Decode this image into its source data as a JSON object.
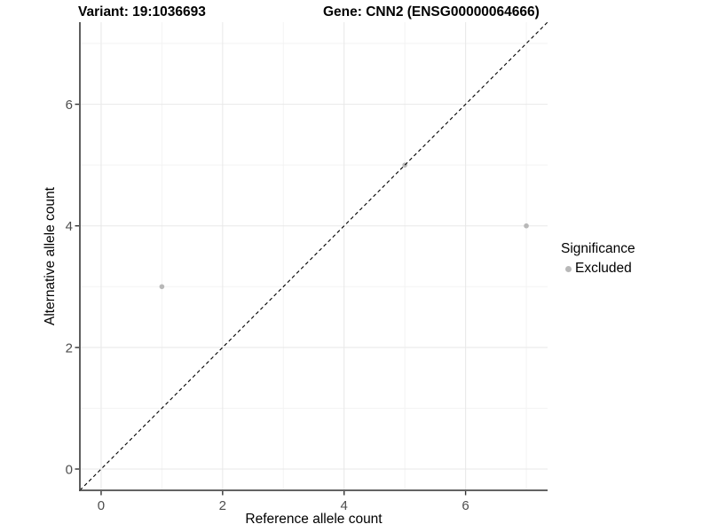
{
  "figure": {
    "title_left": "Variant: 19:1036693",
    "title_right": "Gene: CNN2 (ENSG00000064666)"
  },
  "chart_data": {
    "type": "scatter",
    "title_left": "Variant: 19:1036693",
    "title_right": "Gene: CNN2 (ENSG00000064666)",
    "xlabel": "Reference allele count",
    "ylabel": "Alternative allele count",
    "xlim": [
      -0.35,
      7.35
    ],
    "ylim": [
      -0.35,
      7.35
    ],
    "xticks": [
      0,
      2,
      4,
      6
    ],
    "yticks": [
      0,
      2,
      4,
      6
    ],
    "minor_grid_x": [
      1,
      3,
      5,
      7
    ],
    "minor_grid_y": [
      1,
      3,
      5,
      7
    ],
    "grid": "on",
    "series": [
      {
        "name": "Excluded",
        "color": "#b8b8b8",
        "points": [
          {
            "x": 1,
            "y": 3
          },
          {
            "x": 5,
            "y": 5
          },
          {
            "x": 7,
            "y": 4
          }
        ]
      }
    ],
    "reference_line": {
      "type": "identity y=x",
      "slope": 1,
      "intercept": 0,
      "style": "dashed",
      "color": "#000000"
    },
    "legend": {
      "title": "Significance",
      "position": "right",
      "items": [
        {
          "label": "Excluded",
          "color": "#b8b8b8"
        }
      ]
    }
  },
  "colors": {
    "background": "#ffffff",
    "grid_major": "#e8e8e8",
    "grid_minor": "#f3f3f3",
    "axis_line": "#4d4d4d",
    "tick_mark": "#333333",
    "tick_text": "#4d4d4d",
    "title_text": "#000000"
  }
}
